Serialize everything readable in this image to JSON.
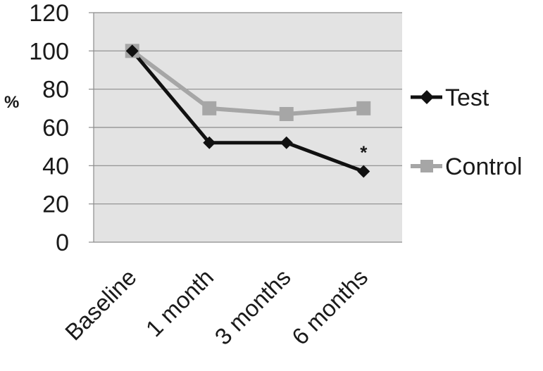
{
  "chart_data": {
    "type": "line",
    "title": "",
    "xlabel": "",
    "ylabel": "%",
    "categories": [
      "Baseline",
      "1 month",
      "3 months",
      "6 months"
    ],
    "ylim": [
      0,
      120
    ],
    "yticks": [
      0,
      20,
      40,
      60,
      80,
      100,
      120
    ],
    "grid": true,
    "legend_position": "right",
    "series": [
      {
        "name": "Test",
        "values": [
          100,
          52,
          52,
          37
        ],
        "color": "#111111",
        "marker": "diamond"
      },
      {
        "name": "Control",
        "values": [
          100,
          70,
          67,
          70
        ],
        "color": "#a6a6a6",
        "marker": "square"
      }
    ],
    "annotations": [
      {
        "text": "*",
        "category": "6 months",
        "series": "Test"
      }
    ],
    "plot_background": "#e3e3e3"
  }
}
